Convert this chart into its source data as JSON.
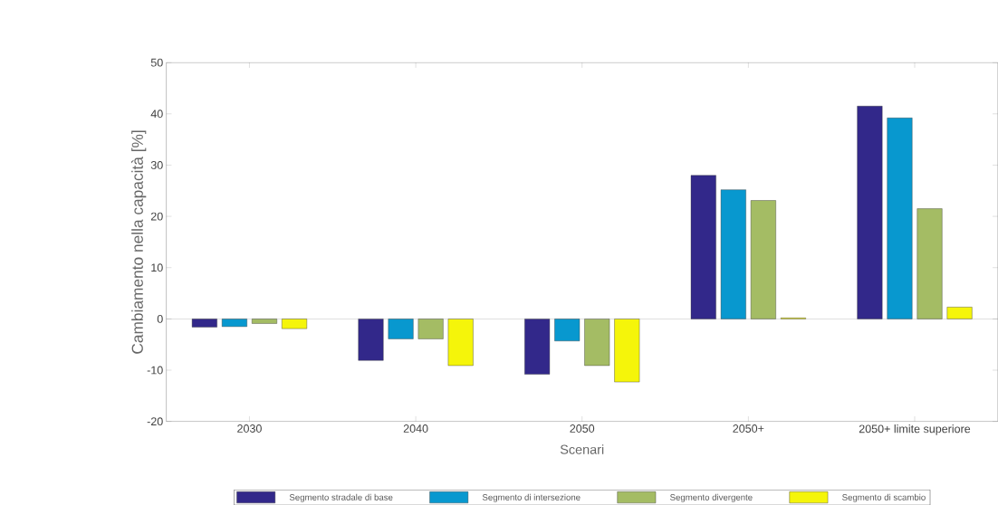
{
  "chart_data": {
    "type": "bar",
    "xlabel": "Scenari",
    "ylabel": "Cambiamento nella capacità [%]",
    "categories": [
      "2030",
      "2040",
      "2050",
      "2050+",
      "2050+ limite superiore"
    ],
    "series": [
      {
        "name": "Segmento stradale di base",
        "color": "#32288a",
        "values": [
          -1.6,
          -8.1,
          -10.8,
          28.0,
          41.5
        ]
      },
      {
        "name": "Segmento di intersezione",
        "color": "#0898cf",
        "values": [
          -1.5,
          -3.9,
          -4.3,
          25.2,
          39.2
        ]
      },
      {
        "name": "Segmento divergente",
        "color": "#a4bc64",
        "values": [
          -0.9,
          -3.9,
          -9.1,
          23.1,
          21.5
        ]
      },
      {
        "name": "Segmento di scambio",
        "color": "#f5f50a",
        "values": [
          -1.9,
          -9.1,
          -12.3,
          0.2,
          2.3
        ]
      }
    ],
    "ylim": [
      -20,
      50
    ],
    "yticks": [
      -20,
      -10,
      0,
      10,
      20,
      30,
      40,
      50
    ],
    "ref_lines": [
      {
        "axis": "y",
        "value": 0
      }
    ],
    "legend": "bottom"
  }
}
